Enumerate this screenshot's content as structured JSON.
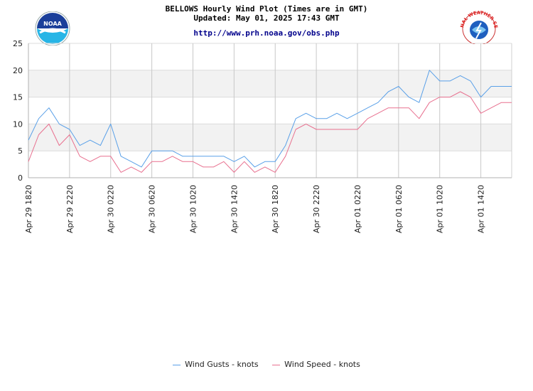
{
  "header": {
    "title": "BELLOWS Hourly Wind Plot (Times are in GMT)",
    "updated": "Updated: May 01, 2025 17:43 GMT",
    "url": "http://www.prh.noaa.gov/obs.php"
  },
  "logos": {
    "left": "NOAA",
    "right": "NATIONAL WEATHER SERVICE"
  },
  "colors": {
    "gusts": "#5aa0e8",
    "speed": "#e8708f",
    "band": "#f2f2f2",
    "grid": "#c8c8c8"
  },
  "chart_data": {
    "type": "line",
    "title": "BELLOWS Hourly Wind Plot (Times are in GMT)",
    "ylim": [
      0,
      25
    ],
    "yticks": [
      0,
      5,
      10,
      15,
      20,
      25
    ],
    "x_tick_labels": [
      "Apr 29 1820",
      "Apr 29 2220",
      "Apr 30 0220",
      "Apr 30 0620",
      "Apr 30 1020",
      "Apr 30 1420",
      "Apr 30 1820",
      "Apr 30 2220",
      "Apr 01 0220",
      "Apr 01 0620",
      "Apr 01 1020",
      "Apr 01 1420"
    ],
    "x_tick_step_hours": 4,
    "hours_after_first_tick": [
      0,
      1,
      2,
      3,
      4,
      5,
      6,
      7,
      8,
      9,
      10,
      11,
      12,
      13,
      14,
      15,
      16,
      17,
      18,
      19,
      20,
      21,
      22,
      23,
      24,
      25,
      26,
      27,
      28,
      29,
      30,
      31,
      32,
      33,
      34,
      35,
      36,
      37,
      38,
      39,
      40,
      41,
      42,
      43,
      44,
      45,
      46,
      47
    ],
    "series": [
      {
        "name": "Wind Gusts - knots",
        "values": [
          7,
          11,
          13,
          10,
          9,
          6,
          7,
          6,
          10,
          4,
          3,
          2,
          5,
          5,
          5,
          4,
          4,
          4,
          4,
          4,
          3,
          4,
          2,
          3,
          3,
          6,
          11,
          12,
          11,
          11,
          12,
          11,
          12,
          13,
          14,
          16,
          17,
          15,
          14,
          20,
          18,
          18,
          19,
          18,
          15,
          17,
          17,
          17
        ]
      },
      {
        "name": "Wind Speed - knots",
        "values": [
          3,
          8,
          10,
          6,
          8,
          4,
          3,
          4,
          4,
          1,
          2,
          1,
          3,
          3,
          4,
          3,
          3,
          2,
          2,
          3,
          1,
          3,
          1,
          2,
          1,
          4,
          9,
          10,
          9,
          9,
          9,
          9,
          9,
          11,
          12,
          13,
          13,
          13,
          11,
          14,
          15,
          15,
          16,
          15,
          12,
          13,
          14,
          14
        ]
      }
    ]
  }
}
